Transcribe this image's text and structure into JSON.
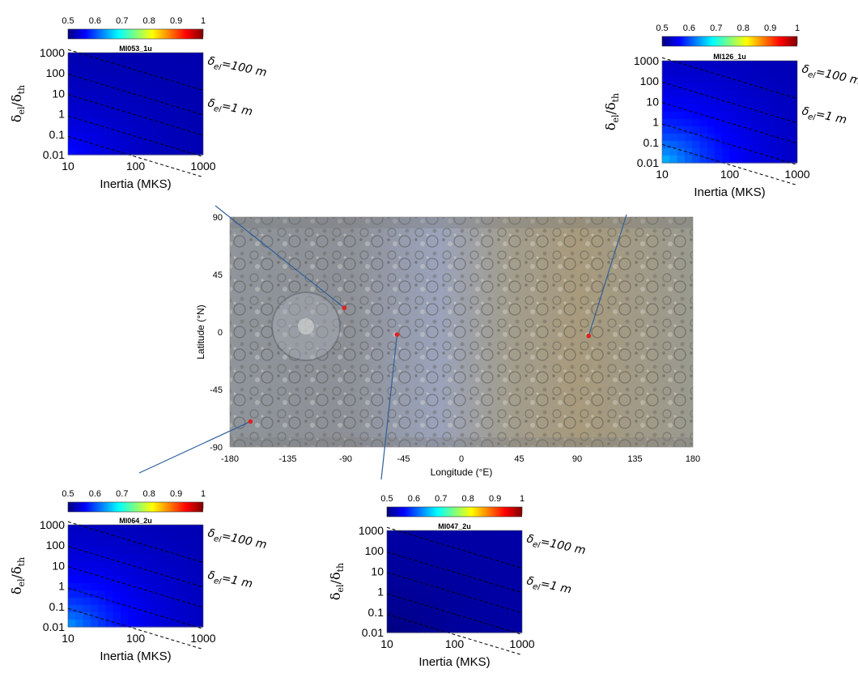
{
  "colorbar": {
    "ticks": [
      "0.5",
      "0.6",
      "0.7",
      "0.8",
      "0.9",
      "1"
    ],
    "colormap": [
      "#00007f",
      "#0000ff",
      "#007fff",
      "#00ffff",
      "#7fff7f",
      "#ffff00",
      "#ff7f00",
      "#ff0000",
      "#7f0000"
    ]
  },
  "panel_common": {
    "ylabel": "δel/δth",
    "xlabel": "Inertia (MKS)",
    "xticks": [
      "10",
      "100",
      "1000"
    ],
    "yticks": [
      "1000",
      "100",
      "10",
      "1",
      "0.1",
      "0.01"
    ],
    "contour_labels": [
      "δel=100 m",
      "δel=1 m"
    ]
  },
  "map": {
    "xlabel": "Longitude (°E)",
    "ylabel": "Latitude (°N)",
    "xticks": [
      "-180",
      "-135",
      "-90",
      "-45",
      "0",
      "45",
      "90",
      "135",
      "180"
    ],
    "yticks": [
      "90",
      "45",
      "0",
      "-45",
      "-90"
    ],
    "marker_color": "#e0201e",
    "connector_color": "#2f5f9a"
  },
  "chart_data": [
    {
      "type": "heatmap",
      "title": "MI053_1u",
      "xlabel": "Inertia (MKS)",
      "ylabel": "δel/δth",
      "x_scale": "log",
      "y_scale": "log",
      "xlim": [
        10,
        1000
      ],
      "ylim": [
        0.01,
        1000
      ],
      "clim": [
        0.5,
        1
      ],
      "value_low_corner": 0.57,
      "value_high_corner": 0.52,
      "location": {
        "lon": -91,
        "lat": 19
      }
    },
    {
      "type": "heatmap",
      "title": "MI126_1u",
      "xlabel": "Inertia (MKS)",
      "ylabel": "δel/δth",
      "x_scale": "log",
      "y_scale": "log",
      "xlim": [
        10,
        1000
      ],
      "ylim": [
        0.01,
        1000
      ],
      "clim": [
        0.5,
        1
      ],
      "value_low_corner": 0.66,
      "value_high_corner": 0.52,
      "location": {
        "lon": 99,
        "lat": -3
      }
    },
    {
      "type": "heatmap",
      "title": "MI064_2u",
      "xlabel": "Inertia (MKS)",
      "ylabel": "δel/δth",
      "x_scale": "log",
      "y_scale": "log",
      "xlim": [
        10,
        1000
      ],
      "ylim": [
        0.01,
        1000
      ],
      "clim": [
        0.5,
        1
      ],
      "value_low_corner": 0.64,
      "value_high_corner": 0.52,
      "location": {
        "lon": -164,
        "lat": -70
      }
    },
    {
      "type": "heatmap",
      "title": "MI047_2u",
      "xlabel": "Inertia (MKS)",
      "ylabel": "δel/δth",
      "x_scale": "log",
      "y_scale": "log",
      "xlim": [
        10,
        1000
      ],
      "ylim": [
        0.01,
        1000
      ],
      "clim": [
        0.5,
        1
      ],
      "value_low_corner": 0.5,
      "value_high_corner": 0.52,
      "location": {
        "lon": -50,
        "lat": -2
      }
    }
  ]
}
